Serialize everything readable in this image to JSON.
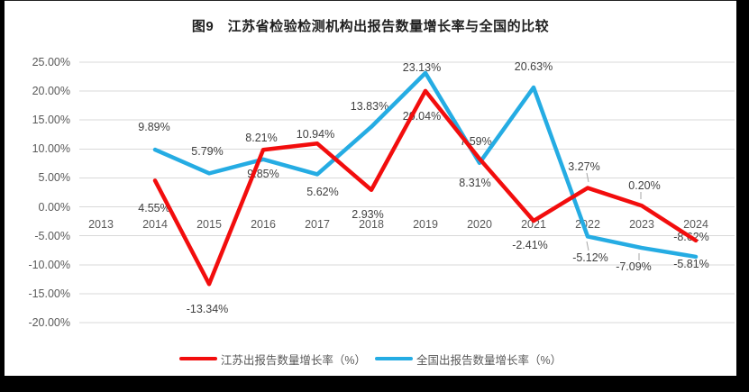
{
  "frame": {
    "outer_background": "#000000",
    "chart_background": "#FFFFFF"
  },
  "chart_data": {
    "type": "line",
    "title": "图9　江苏省检验检测机构出报告数量增长率与全国的比较",
    "categories": [
      "2013",
      "2014",
      "2015",
      "2016",
      "2017",
      "2018",
      "2019",
      "2020",
      "2021",
      "2022",
      "2023",
      "2024"
    ],
    "series": [
      {
        "id": "jiangsu",
        "name": "江苏出报告数量增长率（%）",
        "color": "#F20D0D",
        "values": [
          null,
          4.55,
          -13.34,
          9.85,
          10.94,
          2.93,
          20.04,
          8.31,
          -2.41,
          3.27,
          0.2,
          -5.81
        ]
      },
      {
        "id": "national",
        "name": "全国出报告数量增长率（%）",
        "color": "#25ACE3",
        "values": [
          null,
          9.89,
          5.79,
          8.21,
          5.62,
          13.83,
          23.13,
          7.59,
          20.63,
          -5.12,
          -7.09,
          -8.62
        ]
      }
    ],
    "ylim": [
      -20,
      25
    ],
    "ytick_step": 5,
    "y_tick_labels": [
      "25.00%",
      "20.00%",
      "15.00%",
      "10.00%",
      "5.00%",
      "0.00%",
      "-5.00%",
      "-10.00%",
      "-15.00%",
      "-20.00%"
    ],
    "grid": true,
    "legend_position": "bottom",
    "data_label_format": "percent_2dp"
  },
  "legend": {
    "items": [
      {
        "label": "江苏出报告数量增长率（%）",
        "color": "#F20D0D"
      },
      {
        "label": "全国出报告数量增长率（%）",
        "color": "#25ACE3"
      }
    ]
  }
}
